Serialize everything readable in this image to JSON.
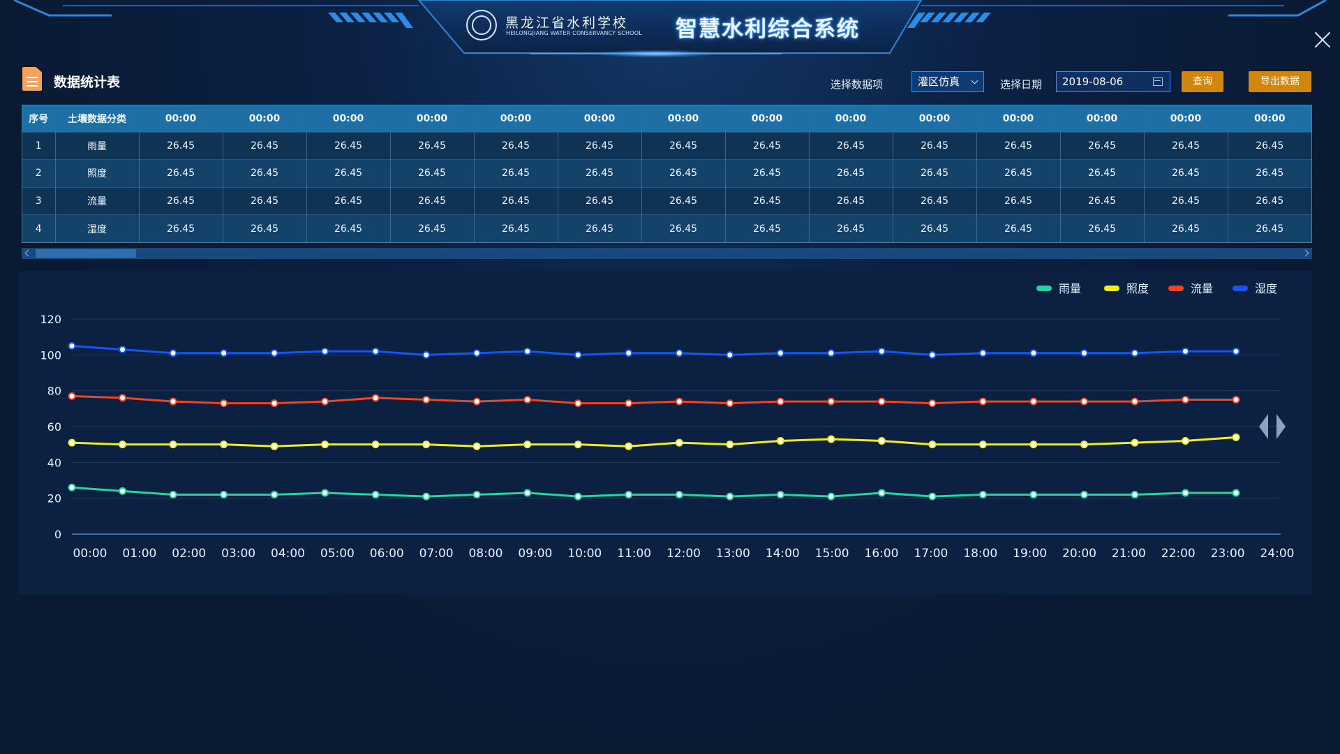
{
  "header": {
    "school_cn": "黑龙江省水利学校",
    "school_en": "HEILONGJIANG WATER CONSERVANCY SCHOOL",
    "system_title": "智慧水利综合系统"
  },
  "toolbar": {
    "page_title": "数据统计表",
    "select_label": "选择数据项",
    "select_value": "灌区仿真",
    "date_label": "选择日期",
    "date_value": "2019-08-06",
    "query_button": "查询",
    "export_button": "导出数据"
  },
  "table": {
    "col_index": "序号",
    "col_category": "土壤数据分类",
    "time_headers": [
      "00:00",
      "00:00",
      "00:00",
      "00:00",
      "00:00",
      "00:00",
      "00:00",
      "00:00",
      "00:00",
      "00:00",
      "00:00",
      "00:00",
      "00:00",
      "00:00"
    ],
    "rows": [
      {
        "index": "1",
        "name": "雨量",
        "values": [
          "26.45",
          "26.45",
          "26.45",
          "26.45",
          "26.45",
          "26.45",
          "26.45",
          "26.45",
          "26.45",
          "26.45",
          "26.45",
          "26.45",
          "26.45",
          "26.45"
        ]
      },
      {
        "index": "2",
        "name": "照度",
        "values": [
          "26.45",
          "26.45",
          "26.45",
          "26.45",
          "26.45",
          "26.45",
          "26.45",
          "26.45",
          "26.45",
          "26.45",
          "26.45",
          "26.45",
          "26.45",
          "26.45"
        ]
      },
      {
        "index": "3",
        "name": "流量",
        "values": [
          "26.45",
          "26.45",
          "26.45",
          "26.45",
          "26.45",
          "26.45",
          "26.45",
          "26.45",
          "26.45",
          "26.45",
          "26.45",
          "26.45",
          "26.45",
          "26.45"
        ]
      },
      {
        "index": "4",
        "name": "湿度",
        "values": [
          "26.45",
          "26.45",
          "26.45",
          "26.45",
          "26.45",
          "26.45",
          "26.45",
          "26.45",
          "26.45",
          "26.45",
          "26.45",
          "26.45",
          "26.45",
          "26.45"
        ]
      }
    ]
  },
  "colors": {
    "rain": "#22d6a0",
    "light": "#f2ee1e",
    "flow": "#f2441d",
    "humidity": "#1456f0"
  },
  "chart_data": {
    "type": "line",
    "x": [
      "00:00",
      "01:00",
      "02:00",
      "03:00",
      "04:00",
      "05:00",
      "06:00",
      "07:00",
      "08:00",
      "09:00",
      "10:00",
      "11:00",
      "12:00",
      "13:00",
      "14:00",
      "15:00",
      "16:00",
      "17:00",
      "18:00",
      "19:00",
      "20:00",
      "21:00",
      "22:00",
      "23:00"
    ],
    "x_ticks": [
      "00:00",
      "01:00",
      "02:00",
      "03:00",
      "04:00",
      "05:00",
      "06:00",
      "07:00",
      "08:00",
      "09:00",
      "10:00",
      "11:00",
      "12:00",
      "13:00",
      "14:00",
      "15:00",
      "16:00",
      "17:00",
      "18:00",
      "19:00",
      "20:00",
      "21:00",
      "22:00",
      "23:00",
      "24:00"
    ],
    "ylim": [
      0,
      120
    ],
    "y_ticks": [
      0,
      20,
      40,
      60,
      80,
      100,
      120
    ],
    "grid": true,
    "legend_position": "top-right",
    "series": [
      {
        "name": "雨量",
        "color": "#22d6a0",
        "values": [
          26,
          24,
          22,
          22,
          22,
          23,
          22,
          21,
          22,
          23,
          21,
          22,
          22,
          21,
          22,
          21,
          23,
          21,
          22,
          22,
          22,
          22,
          23,
          23
        ]
      },
      {
        "name": "照度",
        "color": "#f2ee1e",
        "values": [
          51,
          50,
          50,
          50,
          49,
          50,
          50,
          50,
          49,
          50,
          50,
          49,
          51,
          50,
          52,
          53,
          52,
          50,
          50,
          50,
          50,
          51,
          52,
          54
        ]
      },
      {
        "name": "流量",
        "color": "#f2441d",
        "values": [
          77,
          76,
          74,
          73,
          73,
          74,
          76,
          75,
          74,
          75,
          73,
          73,
          74,
          73,
          74,
          74,
          74,
          73,
          74,
          74,
          74,
          74,
          75,
          75
        ]
      },
      {
        "name": "湿度",
        "color": "#1456f0",
        "values": [
          105,
          103,
          101,
          101,
          101,
          102,
          102,
          100,
          101,
          102,
          100,
          101,
          101,
          100,
          101,
          101,
          102,
          100,
          101,
          101,
          101,
          101,
          102,
          102
        ]
      }
    ]
  }
}
